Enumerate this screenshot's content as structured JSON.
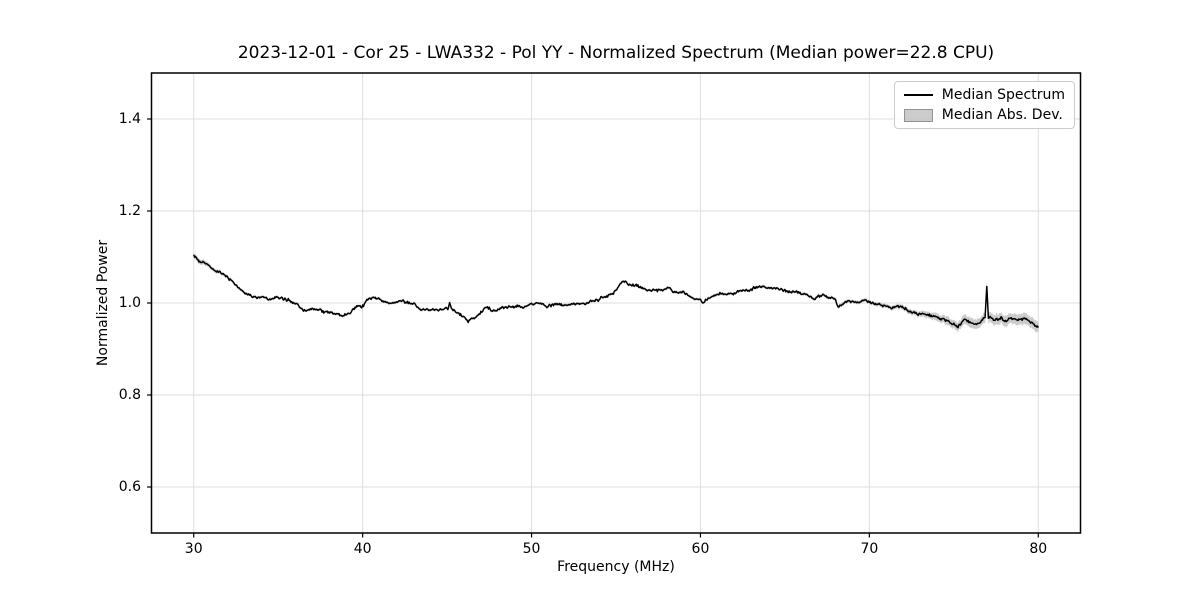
{
  "chart_data": {
    "type": "line",
    "title": "2023-12-01 - Cor 25 - LWA332 - Pol YY - Normalized Spectrum (Median power=22.8 CPU)",
    "xlabel": "Frequency (MHz)",
    "ylabel": "Normalized Power",
    "xlim": [
      27.5,
      82.5
    ],
    "ylim": [
      0.5,
      1.5
    ],
    "xticks": [
      30,
      40,
      50,
      60,
      70,
      80
    ],
    "yticks": [
      0.6,
      0.8,
      1.0,
      1.2,
      1.4
    ],
    "grid": true,
    "colors": {
      "line": "#000000",
      "band": "rgba(0,0,0,0.20)",
      "grid": "#dedede",
      "spine": "#000000",
      "background": "#ffffff"
    },
    "legend": {
      "position": "upper right",
      "entries": [
        {
          "label": "Median Spectrum",
          "type": "line",
          "color": "#000000"
        },
        {
          "label": "Median Abs. Dev.",
          "type": "patch",
          "color": "rgba(0,0,0,0.2)"
        }
      ]
    },
    "annotations": {
      "spikes_mhz": [
        45.15,
        76.95
      ]
    },
    "series": [
      {
        "name": "Median Spectrum",
        "kind": "line",
        "points": [
          [
            30.0,
            1.103
          ],
          [
            30.3,
            1.095
          ],
          [
            30.6,
            1.088
          ],
          [
            31.0,
            1.078
          ],
          [
            31.4,
            1.068
          ],
          [
            31.8,
            1.06
          ],
          [
            32.2,
            1.049
          ],
          [
            32.6,
            1.04
          ],
          [
            33.0,
            1.029
          ],
          [
            33.4,
            1.02
          ],
          [
            33.8,
            1.014
          ],
          [
            34.2,
            1.017
          ],
          [
            34.5,
            1.011
          ],
          [
            35.0,
            1.008
          ],
          [
            35.3,
            1.0
          ],
          [
            35.6,
            1.002
          ],
          [
            36.0,
            0.999
          ],
          [
            36.5,
            0.988
          ],
          [
            37.0,
            0.985
          ],
          [
            37.5,
            0.982
          ],
          [
            38.0,
            0.978
          ],
          [
            38.4,
            0.975
          ],
          [
            38.8,
            0.971
          ],
          [
            39.2,
            0.975
          ],
          [
            39.5,
            0.984
          ],
          [
            39.8,
            0.991
          ],
          [
            39.95,
            0.987
          ],
          [
            40.3,
            1.004
          ],
          [
            40.6,
            1.008
          ],
          [
            41.0,
            1.005
          ],
          [
            41.5,
            1.002
          ],
          [
            42.0,
            1.001
          ],
          [
            42.5,
            1.0
          ],
          [
            43.0,
            0.997
          ],
          [
            43.5,
            0.987
          ],
          [
            44.0,
            0.988
          ],
          [
            44.4,
            0.985
          ],
          [
            44.8,
            0.984
          ],
          [
            45.05,
            0.985
          ],
          [
            45.15,
            1.0
          ],
          [
            45.3,
            0.983
          ],
          [
            45.6,
            0.978
          ],
          [
            46.0,
            0.966
          ],
          [
            46.25,
            0.961
          ],
          [
            46.6,
            0.972
          ],
          [
            47.0,
            0.984
          ],
          [
            47.4,
            0.989
          ],
          [
            47.7,
            0.984
          ],
          [
            48.0,
            0.99
          ],
          [
            48.5,
            0.992
          ],
          [
            49.0,
            0.991
          ],
          [
            49.5,
            0.993
          ],
          [
            50.0,
            0.996
          ],
          [
            50.4,
            0.997
          ],
          [
            50.9,
            0.989
          ],
          [
            51.4,
            0.994
          ],
          [
            52.0,
            0.996
          ],
          [
            52.6,
            0.997
          ],
          [
            53.0,
            1.0
          ],
          [
            53.5,
            1.003
          ],
          [
            54.0,
            1.008
          ],
          [
            54.5,
            1.018
          ],
          [
            55.0,
            1.03
          ],
          [
            55.25,
            1.04
          ],
          [
            55.45,
            1.048
          ],
          [
            55.8,
            1.043
          ],
          [
            56.2,
            1.036
          ],
          [
            56.6,
            1.031
          ],
          [
            57.0,
            1.029
          ],
          [
            57.5,
            1.026
          ],
          [
            58.0,
            1.026
          ],
          [
            58.5,
            1.024
          ],
          [
            59.0,
            1.021
          ],
          [
            59.5,
            1.015
          ],
          [
            60.0,
            1.007
          ],
          [
            60.2,
            1.0
          ],
          [
            60.5,
            1.01
          ],
          [
            60.8,
            1.015
          ],
          [
            61.2,
            1.021
          ],
          [
            61.6,
            1.023
          ],
          [
            62.0,
            1.026
          ],
          [
            62.5,
            1.029
          ],
          [
            63.0,
            1.034
          ],
          [
            63.5,
            1.04
          ],
          [
            63.8,
            1.037
          ],
          [
            64.2,
            1.032
          ],
          [
            64.6,
            1.027
          ],
          [
            65.0,
            1.025
          ],
          [
            65.5,
            1.021
          ],
          [
            66.0,
            1.02
          ],
          [
            66.5,
            1.016
          ],
          [
            67.0,
            1.013
          ],
          [
            67.5,
            1.012
          ],
          [
            68.0,
            1.01
          ],
          [
            68.2,
            0.993
          ],
          [
            68.45,
            1.004
          ],
          [
            69.0,
            1.003
          ],
          [
            69.5,
            1.001
          ],
          [
            70.0,
            1.0
          ],
          [
            70.5,
            0.997
          ],
          [
            71.0,
            0.995
          ],
          [
            71.5,
            0.991
          ],
          [
            72.0,
            0.988
          ],
          [
            72.5,
            0.983
          ],
          [
            73.0,
            0.98
          ],
          [
            73.5,
            0.975
          ],
          [
            74.0,
            0.968
          ],
          [
            74.5,
            0.963
          ],
          [
            75.0,
            0.96
          ],
          [
            75.25,
            0.953
          ],
          [
            75.6,
            0.968
          ],
          [
            76.0,
            0.962
          ],
          [
            76.4,
            0.964
          ],
          [
            76.75,
            0.966
          ],
          [
            76.85,
            0.968
          ],
          [
            76.95,
            1.036
          ],
          [
            77.05,
            0.967
          ],
          [
            77.4,
            0.963
          ],
          [
            77.8,
            0.968
          ],
          [
            78.1,
            0.961
          ],
          [
            78.5,
            0.966
          ],
          [
            79.0,
            0.962
          ],
          [
            79.3,
            0.965
          ],
          [
            79.6,
            0.958
          ],
          [
            80.0,
            0.95
          ]
        ]
      },
      {
        "name": "Median Abs. Dev.",
        "kind": "band",
        "half_width": [
          [
            30,
            0.006
          ],
          [
            31,
            0.0045
          ],
          [
            32,
            0.0035
          ],
          [
            33,
            0.003
          ],
          [
            40,
            0.0028
          ],
          [
            50,
            0.0028
          ],
          [
            60,
            0.003
          ],
          [
            65,
            0.003
          ],
          [
            70,
            0.004
          ],
          [
            72,
            0.005
          ],
          [
            73,
            0.006
          ],
          [
            74,
            0.008
          ],
          [
            75,
            0.0095
          ],
          [
            76,
            0.0105
          ],
          [
            77,
            0.0115
          ],
          [
            78,
            0.011
          ],
          [
            79,
            0.0115
          ],
          [
            80,
            0.0125
          ]
        ]
      }
    ]
  }
}
